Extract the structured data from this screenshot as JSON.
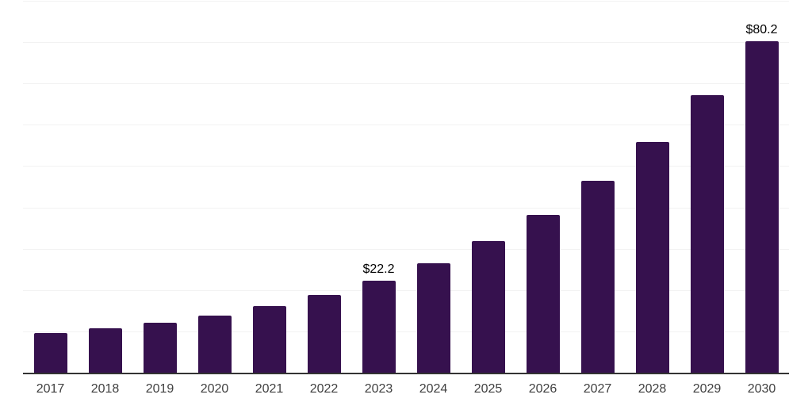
{
  "chart_data": {
    "type": "bar",
    "title": "",
    "xlabel": "",
    "ylabel": "",
    "categories": [
      "2017",
      "2018",
      "2019",
      "2020",
      "2021",
      "2022",
      "2023",
      "2024",
      "2025",
      "2026",
      "2027",
      "2028",
      "2029",
      "2030"
    ],
    "values": [
      9.6,
      10.8,
      12.1,
      13.8,
      16.2,
      18.8,
      22.2,
      26.4,
      31.9,
      38.2,
      46.4,
      55.8,
      67.2,
      80.2
    ],
    "value_labels": [
      "",
      "",
      "",
      "",
      "",
      "",
      "$22.2",
      "",
      "",
      "",
      "",
      "",
      "",
      "$80.2"
    ],
    "ylim": [
      0,
      90
    ],
    "gridline_step": 10,
    "grid": "horizontal-only",
    "legend": "none",
    "colors": {
      "bar": "#36114E",
      "gridline": "#f2f2f2",
      "axis_line": "#333333",
      "tick_label": "#404040",
      "value_label": "#000000",
      "background": "#ffffff"
    }
  }
}
